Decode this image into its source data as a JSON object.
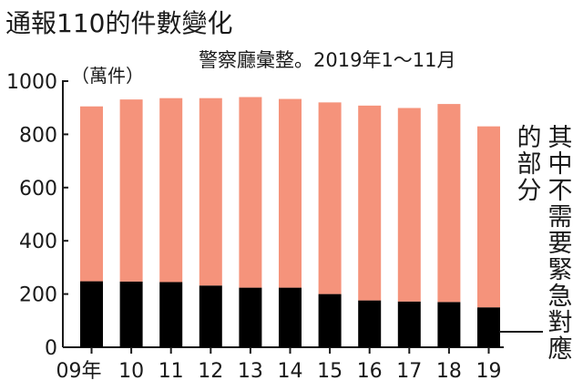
{
  "chart_data": {
    "type": "bar",
    "stacked": true,
    "title": "通報110的件數變化",
    "subtitle": "警察廳彙整。2019年1～11月",
    "unit_label": "（萬件）",
    "categories": [
      "09年",
      "10",
      "11",
      "12",
      "13",
      "14",
      "15",
      "16",
      "17",
      "18",
      "19"
    ],
    "series": [
      {
        "name": "其中不需要緊急對應的部分",
        "color": "#000000",
        "values": [
          248,
          247,
          245,
          232,
          224,
          224,
          200,
          176,
          172,
          170,
          150
        ]
      },
      {
        "name": "",
        "color": "#f5937b",
        "values": [
          657,
          684,
          691,
          704,
          716,
          709,
          720,
          732,
          727,
          744,
          680
        ]
      }
    ],
    "totals": [
      905,
      931,
      936,
      936,
      940,
      933,
      920,
      908,
      899,
      914,
      830
    ],
    "ylim": [
      0,
      1000
    ],
    "yticks": [
      0,
      200,
      400,
      600,
      800,
      1000
    ],
    "grid": false,
    "legend": "callout-right"
  },
  "legend_lines": [
    "其中不需要緊急對應",
    "的部分"
  ]
}
